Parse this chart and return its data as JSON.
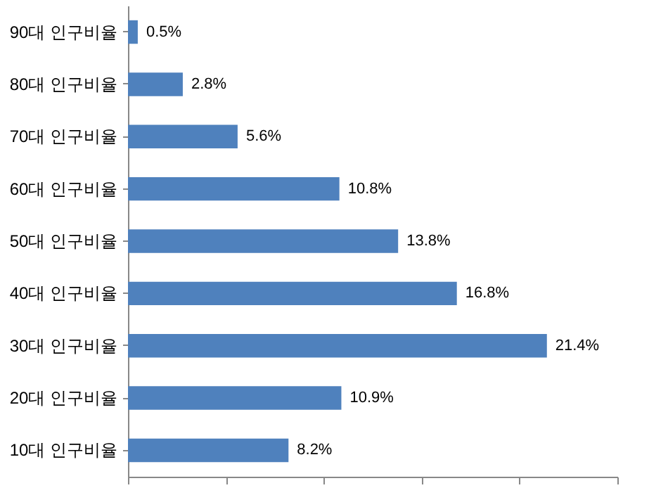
{
  "chart_data": {
    "type": "bar",
    "orientation": "horizontal",
    "categories": [
      "90대 인구비율",
      "80대 인구비율",
      "70대 인구비율",
      "60대 인구비율",
      "50대 인구비율",
      "40대 인구비율",
      "30대 인구비율",
      "20대 인구비율",
      "10대 인구비율"
    ],
    "values": [
      0.5,
      2.8,
      5.6,
      10.8,
      13.8,
      16.8,
      21.4,
      10.9,
      8.2
    ],
    "value_labels": [
      "0.5%",
      "2.8%",
      "5.6%",
      "10.8%",
      "13.8%",
      "16.8%",
      "21.4%",
      "10.9%",
      "8.2%"
    ],
    "color": "#4f81bd",
    "xlim": [
      0,
      25
    ],
    "xticks": [
      {
        "value": 0,
        "label": null
      },
      {
        "value": 5,
        "label": null
      },
      {
        "value": 10,
        "label": null
      },
      {
        "value": 15,
        "label": null
      },
      {
        "value": 20,
        "label": null
      },
      {
        "value": 25,
        "label": null
      }
    ],
    "tick_labels": "y",
    "grid": false
  }
}
